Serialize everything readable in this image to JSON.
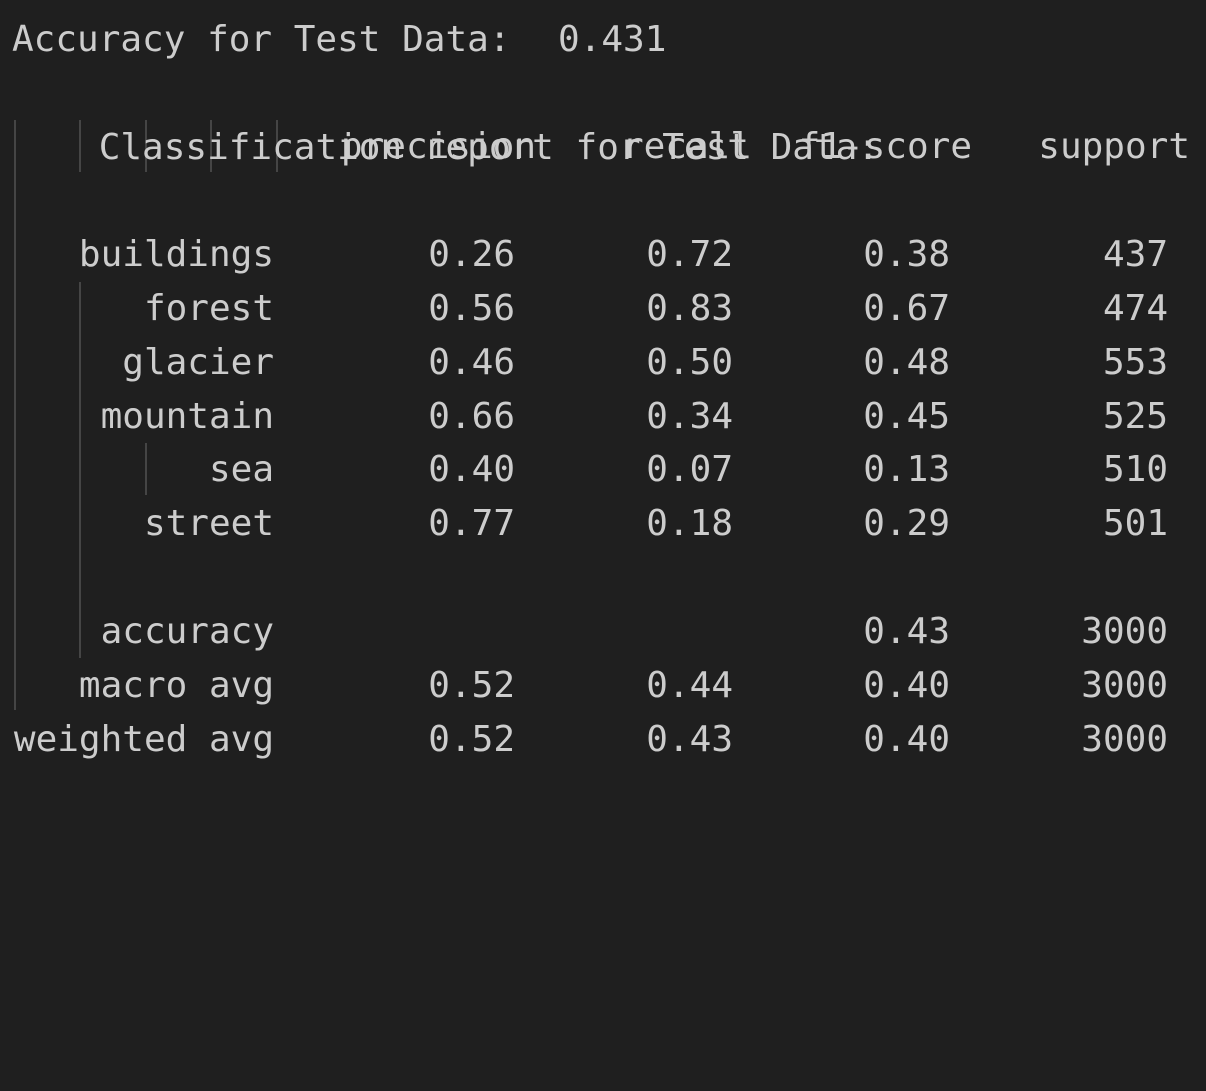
{
  "output": {
    "accuracy_label": "Accuracy for Test Data:",
    "accuracy_value": "0.431",
    "report_label": "Classification report for Test Data:"
  },
  "report": {
    "headers": {
      "precision": "precision",
      "recall": "recall",
      "f1": "f1-score",
      "support": "support"
    },
    "rows": [
      {
        "label": "buildings",
        "precision": "0.26",
        "recall": "0.72",
        "f1": "0.38",
        "support": "437"
      },
      {
        "label": "forest",
        "precision": "0.56",
        "recall": "0.83",
        "f1": "0.67",
        "support": "474"
      },
      {
        "label": "glacier",
        "precision": "0.46",
        "recall": "0.50",
        "f1": "0.48",
        "support": "553"
      },
      {
        "label": "mountain",
        "precision": "0.66",
        "recall": "0.34",
        "f1": "0.45",
        "support": "525"
      },
      {
        "label": "sea",
        "precision": "0.40",
        "recall": "0.07",
        "f1": "0.13",
        "support": "510"
      },
      {
        "label": "street",
        "precision": "0.77",
        "recall": "0.18",
        "f1": "0.29",
        "support": "501"
      }
    ],
    "summary": [
      {
        "label": "accuracy",
        "precision": "",
        "recall": "",
        "f1": "0.43",
        "support": "3000"
      },
      {
        "label": "macro avg",
        "precision": "0.52",
        "recall": "0.44",
        "f1": "0.40",
        "support": "3000"
      },
      {
        "label": "weighted avg",
        "precision": "0.52",
        "recall": "0.43",
        "f1": "0.40",
        "support": "3000"
      }
    ]
  },
  "colors": {
    "background": "#1f1f1f",
    "text": "#cccccc",
    "indent_guide": "#454545"
  }
}
